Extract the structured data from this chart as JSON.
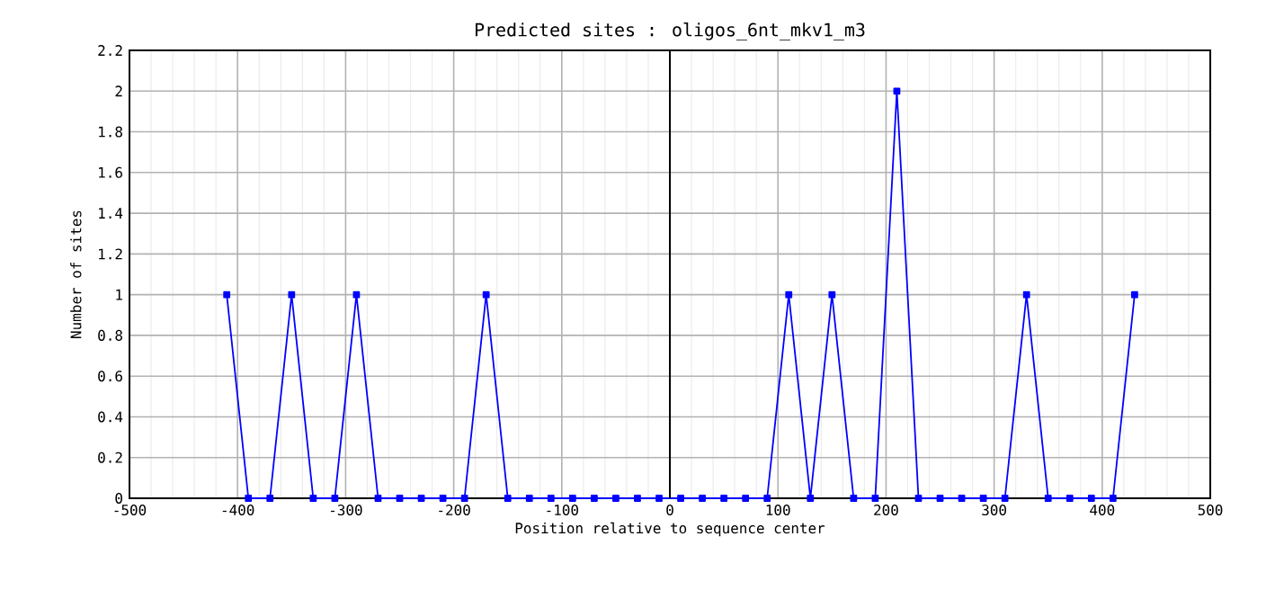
{
  "chart_data": {
    "type": "line",
    "title": "Predicted sites : oligos_6nt_mkv1_m3",
    "xlabel": "Position relative to sequence center",
    "ylabel": "Number of sites",
    "x": [
      -410,
      -390,
      -370,
      -350,
      -330,
      -310,
      -290,
      -270,
      -250,
      -230,
      -210,
      -190,
      -170,
      -150,
      -130,
      -110,
      -90,
      -70,
      -50,
      -30,
      -10,
      10,
      30,
      50,
      70,
      90,
      110,
      130,
      150,
      170,
      190,
      210,
      230,
      250,
      270,
      290,
      310,
      330,
      350,
      370,
      390,
      410,
      430
    ],
    "series": [
      {
        "color": "#0000ff",
        "values": [
          1,
          0,
          0,
          1,
          0,
          0,
          1,
          0,
          0,
          0,
          0,
          0,
          1,
          0,
          0,
          0,
          0,
          0,
          0,
          0,
          0,
          0,
          0,
          0,
          0,
          0,
          1,
          0,
          1,
          0,
          0,
          2,
          0,
          0,
          0,
          0,
          0,
          1,
          0,
          0,
          0,
          0,
          1
        ]
      }
    ],
    "xlim": [
      -500,
      500
    ],
    "xticks": [
      -500,
      -400,
      -300,
      -200,
      -100,
      0,
      100,
      200,
      300,
      400,
      500
    ],
    "ylim": [
      0,
      2.2
    ],
    "yticks": [
      0,
      0.2,
      0.4,
      0.6,
      0.8,
      1,
      1.2,
      1.4,
      1.6,
      1.8,
      2,
      2.2
    ],
    "grid": true,
    "marker": "square",
    "line_style": "solid",
    "ref_lines": [
      {
        "axis": "x",
        "value": 0,
        "color": "#000000"
      }
    ]
  }
}
